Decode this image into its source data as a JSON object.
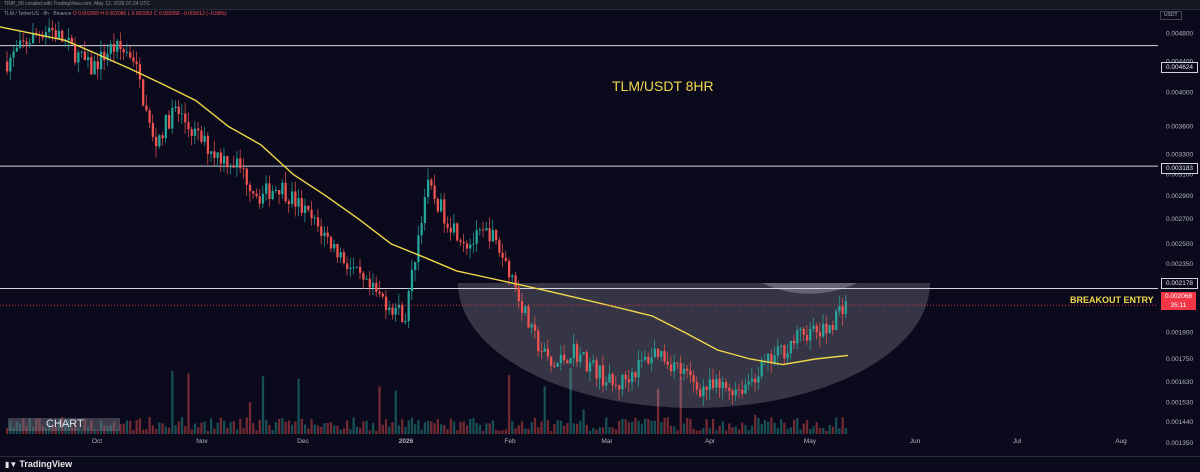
{
  "header": {
    "credit": "TRIP_00 created with TradingView.com, May 12, 2026 07:24 UTC",
    "legend": "TLM / TetherUS · 8h · Binance",
    "ohlc": "O 0.002069  H 0.002086  L 0.002052  C 0.002068  −0.000012 (−0.58%)",
    "currency": "USDT"
  },
  "annotations": {
    "title": "TLM/USDT 8HR",
    "breakout": "BREAKOUT ENTRY",
    "watermark": "CHART"
  },
  "price_tags": [
    {
      "value": "0.004624",
      "style": "level"
    },
    {
      "value": "0.003183",
      "style": "level"
    },
    {
      "value": "0.002178",
      "style": "level"
    },
    {
      "value": "0.002068",
      "countdown": "35:11",
      "style": "current"
    }
  ],
  "footer": {
    "brand": "TradingView"
  },
  "colors": {
    "background": "#0b0a1c",
    "up": "#26a69a",
    "down": "#ef5350",
    "moving_average": "#f0d84a",
    "level_line": "#d1d4dc",
    "current_price": "#f23645"
  },
  "chart_data": {
    "type": "line",
    "title": "TLM/USDT 8HR",
    "xlabel": "",
    "ylabel": "",
    "scale": "log",
    "grid": false,
    "ylim": [
      0.00132,
      0.0051
    ],
    "x_ticks": [
      "Oct",
      "Nov",
      "Dec",
      "2026",
      "Feb",
      "Mar",
      "Apr",
      "May",
      "Jun",
      "Jul",
      "Aug"
    ],
    "y_ticks": [
      0.0048,
      0.0044,
      0.004,
      0.0036,
      0.0033,
      0.0031,
      0.0029,
      0.0027,
      0.0025,
      0.00235,
      0.0019,
      0.00175,
      0.00163,
      0.00153,
      0.00144,
      0.00135
    ],
    "horizontal_levels": [
      0.004624,
      0.003183,
      0.002178
    ],
    "current_price": 0.002068,
    "series": [
      {
        "values": [
          0.0044,
          0.0047,
          0.0049,
          0.0046,
          0.0043,
          0.0046,
          0.0045,
          0.0034,
          0.0038,
          0.0035,
          0.0033,
          0.0032,
          0.0029,
          0.003,
          0.0028,
          0.0026,
          0.0024,
          0.0022,
          0.0021,
          0.002,
          0.003,
          0.0027,
          0.0025,
          0.0026,
          0.0023,
          0.0019,
          0.0017,
          0.0018,
          0.0017,
          0.0016,
          0.0017,
          0.0018,
          0.0017,
          0.0016,
          0.0016,
          0.0016,
          0.0017,
          0.0018,
          0.0019,
          0.0019,
          0.0021
        ]
      },
      {
        "values": [
          0.0049,
          0.0048,
          0.0047,
          0.0045,
          0.0043,
          0.0041,
          0.0039,
          0.0036,
          0.0034,
          0.0031,
          0.0029,
          0.0027,
          0.0025,
          0.0024,
          0.0023,
          0.00225,
          0.0022,
          0.00215,
          0.0021,
          0.00205,
          0.002,
          0.0019,
          0.0018,
          0.00175,
          0.00172,
          0.00175,
          0.00177
        ]
      }
    ]
  }
}
